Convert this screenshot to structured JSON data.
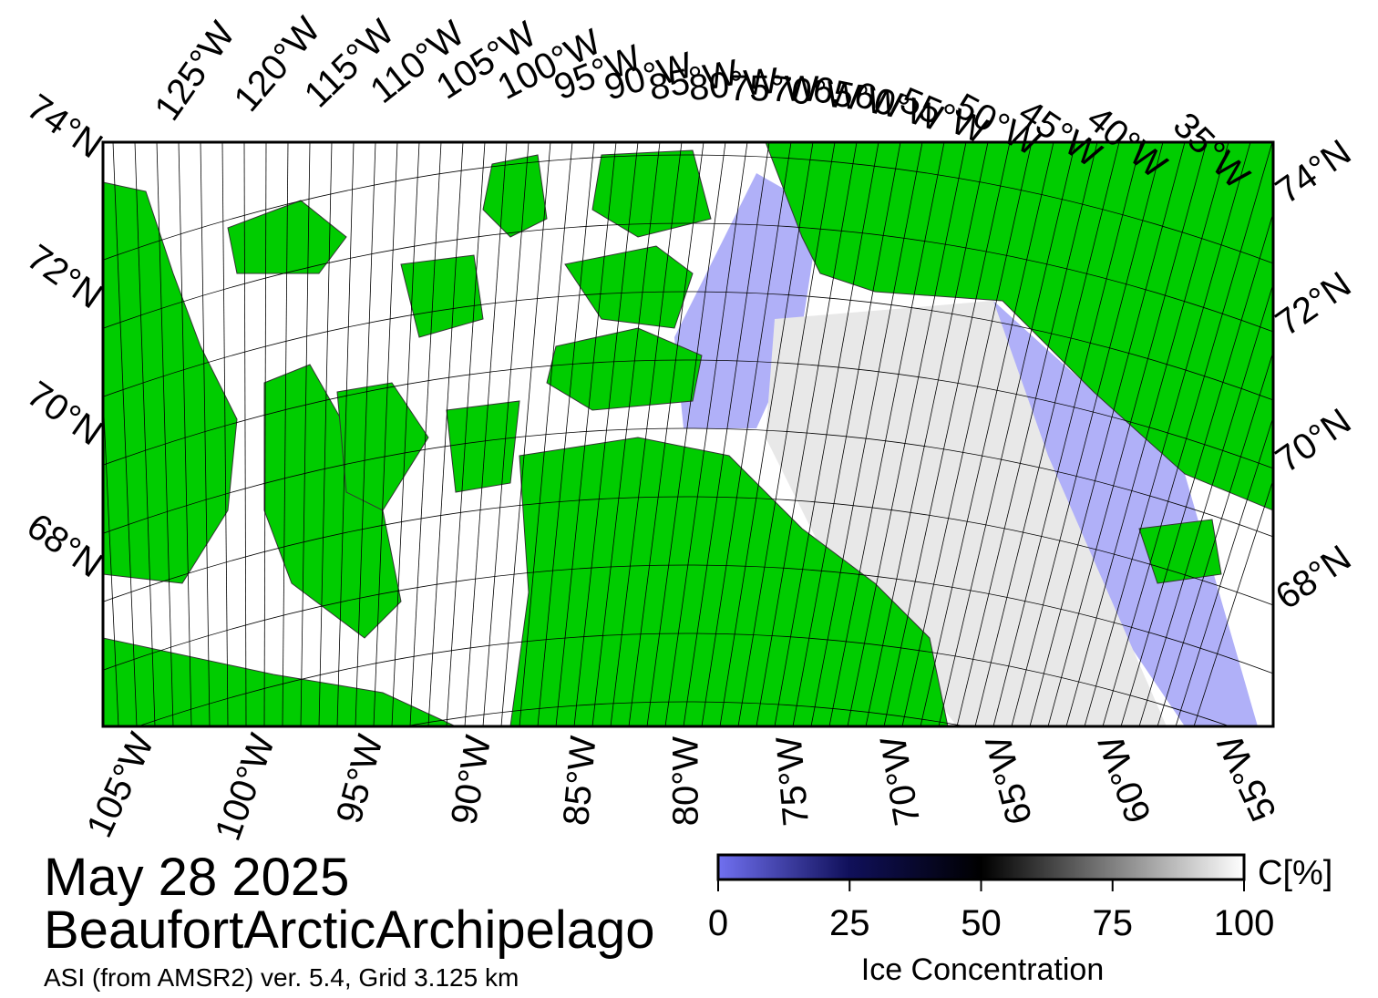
{
  "map": {
    "top_lon_labels": [
      "125°W",
      "120°W",
      "115°W",
      "110°W",
      "105°W",
      "100°W",
      "95°W",
      "90°W",
      "85°W",
      "80°W",
      "75°W",
      "70°W",
      "65°W",
      "60°W",
      "55°W",
      "50°W",
      "45°W",
      "40°W",
      "35°W"
    ],
    "bottom_lon_labels": [
      "105°W",
      "100°W",
      "95°W",
      "90°W",
      "85°W",
      "80°W",
      "75°W",
      "70°W",
      "65°W",
      "60°W",
      "55°W"
    ],
    "left_lat_labels": [
      "74°N",
      "72°N",
      "70°N",
      "68°N"
    ],
    "right_lat_labels": [
      "74°N",
      "72°N",
      "70°N",
      "68°N"
    ]
  },
  "date": "May 28 2025",
  "region": "BeaufortArcticArchipelago",
  "source": "ASI (from AMSR2) ver. 5.4,  Grid 3.125 km",
  "colorbar": {
    "label": "Ice Concentration",
    "unit": "C[%]",
    "lim": [
      0,
      100
    ],
    "ticks": [
      0,
      25,
      50,
      75,
      100
    ]
  }
}
